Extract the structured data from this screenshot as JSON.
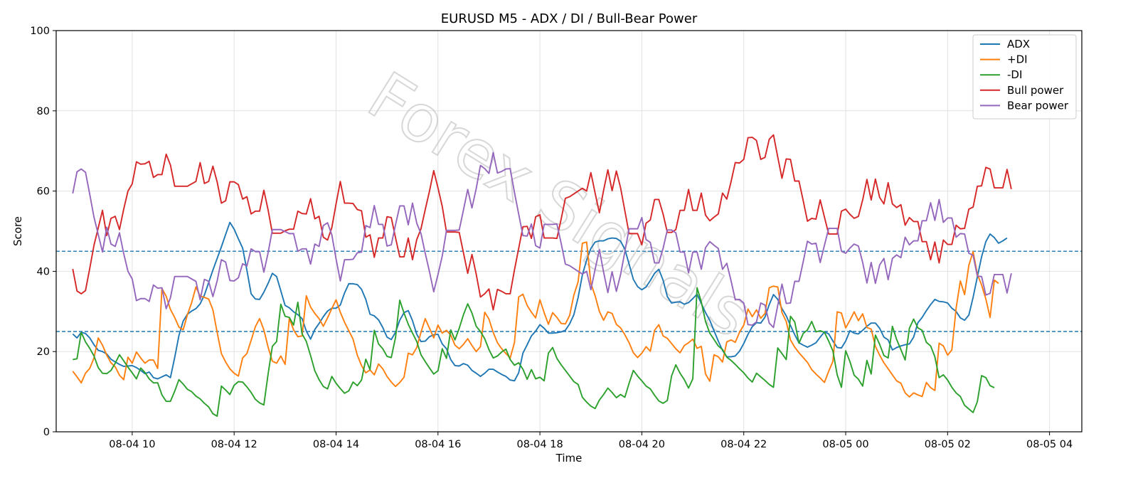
{
  "chart_data": {
    "type": "line",
    "title": "EURUSD M5 - ADX / DI / Bull-Bear Power",
    "xlabel": "Time",
    "ylabel": "Score",
    "ylim": [
      0,
      100
    ],
    "yticks": [
      0,
      20,
      40,
      60,
      80,
      100
    ],
    "x_start": "08-04 08:50",
    "x_step_minutes": 5,
    "xlim_hours": [
      -0.325,
      19.8
    ],
    "xticks": [
      {
        "hour": 1.1667,
        "label": "08-04 10"
      },
      {
        "hour": 3.1667,
        "label": "08-04 12"
      },
      {
        "hour": 5.1667,
        "label": "08-04 14"
      },
      {
        "hour": 7.1667,
        "label": "08-04 16"
      },
      {
        "hour": 9.1667,
        "label": "08-04 18"
      },
      {
        "hour": 11.1667,
        "label": "08-04 20"
      },
      {
        "hour": 13.1667,
        "label": "08-04 22"
      },
      {
        "hour": 15.1667,
        "label": "08-05 00"
      },
      {
        "hour": 17.1667,
        "label": "08-05 02"
      },
      {
        "hour": 19.1667,
        "label": "08-05 04"
      }
    ],
    "hlines": [
      {
        "y": 45,
        "style": "dashed",
        "color": "#1f77b4"
      },
      {
        "y": 25,
        "style": "dashed",
        "color": "#1f77b4"
      }
    ],
    "grid": true,
    "legend_position": "top-right",
    "watermark": "Forex Signals",
    "series": [
      {
        "name": "ADX",
        "color": "#1f77b4",
        "values": [
          24.4,
          23.4,
          24.8,
          24.5,
          23.4,
          21.7,
          20.3,
          20.0,
          19.4,
          18.1,
          17.4,
          16.8,
          16.3,
          16.4,
          16.5,
          16.0,
          15.3,
          14.5,
          14.9,
          13.5,
          13.2,
          13.7,
          14.2,
          13.5,
          18.5,
          24.0,
          27.6,
          29.3,
          30.1,
          30.7,
          31.9,
          34.1,
          37.2,
          40.3,
          43.2,
          46.1,
          49.2,
          52.2,
          50.5,
          48.1,
          45.8,
          40.3,
          34.4,
          33.1,
          33.0,
          34.8,
          37.0,
          39.5,
          38.7,
          35.1,
          31.5,
          30.9,
          29.9,
          29.2,
          28.2,
          25.1,
          23.1,
          25.5,
          27.0,
          28.7,
          30.1,
          30.8,
          30.8,
          31.6,
          34.6,
          36.9,
          36.9,
          36.7,
          35.5,
          33.0,
          29.3,
          28.9,
          27.9,
          26.0,
          23.6,
          23.0,
          24.8,
          27.8,
          29.7,
          30.2,
          27.7,
          24.3,
          22.5,
          22.6,
          23.7,
          24.2,
          24.3,
          21.9,
          20.7,
          18.0,
          16.5,
          16.4,
          17.0,
          16.6,
          15.3,
          14.6,
          13.8,
          14.6,
          15.6,
          15.6,
          14.9,
          14.3,
          13.8,
          12.9,
          12.7,
          14.7,
          19.6,
          21.7,
          23.9,
          25.1,
          26.7,
          25.8,
          24.6,
          24.6,
          24.7,
          24.9,
          25.3,
          26.9,
          29.2,
          33.5,
          39.1,
          42.8,
          45.7,
          47.3,
          47.6,
          47.6,
          48.1,
          48.3,
          48.2,
          47.5,
          45.5,
          41.8,
          38.0,
          36.2,
          35.4,
          36.1,
          37.7,
          39.5,
          40.5,
          37.8,
          33.7,
          32.1,
          32.3,
          32.4,
          31.8,
          32.2,
          33.2,
          34.3,
          32.0,
          29.7,
          27.8,
          25.2,
          22.6,
          20.3,
          18.7,
          18.7,
          18.9,
          20.1,
          22.0,
          24.3,
          26.2,
          27.2,
          27.1,
          28.6,
          31.7,
          34.2,
          33.0,
          30.7,
          28.9,
          26.5,
          24.2,
          22.2,
          21.6,
          21.1,
          21.6,
          22.2,
          23.6,
          24.9,
          24.4,
          22.6,
          21.0,
          20.9,
          22.6,
          25.2,
          24.6,
          24.4,
          25.3,
          26.3,
          27.1,
          27.1,
          25.8,
          23.6,
          22.9,
          20.4,
          21.0,
          21.4,
          21.7,
          21.9,
          23.6,
          27.2,
          28.5,
          30.2,
          31.7,
          33.0,
          32.5,
          32.4,
          32.1,
          30.8,
          30.0,
          28.4,
          27.8,
          29.1,
          33.5,
          38.6,
          43.6,
          47.4,
          49.3,
          48.4,
          47.0,
          47.6,
          48.3
        ]
      },
      {
        "name": "+DI",
        "color": "#ff7f0e",
        "values": [
          15.1,
          13.7,
          12.2,
          14.6,
          15.8,
          18.4,
          23.4,
          21.6,
          19.1,
          17.2,
          16.2,
          14.1,
          13.0,
          18.6,
          17.1,
          19.9,
          18.4,
          17.1,
          17.9,
          17.9,
          15.8,
          35.7,
          33.8,
          30.5,
          28.5,
          26.1,
          25.4,
          29.2,
          32.2,
          36.1,
          33.8,
          33.5,
          33.1,
          30.4,
          24.8,
          19.5,
          17.4,
          15.7,
          14.6,
          13.9,
          18.4,
          19.5,
          22.8,
          26.2,
          28.2,
          25.4,
          21.1,
          17.6,
          17.1,
          18.9,
          16.8,
          28.3,
          25.4,
          23.7,
          23.9,
          33.9,
          31.1,
          29.5,
          28.2,
          26.3,
          28.4,
          30.7,
          32.9,
          29.8,
          27.3,
          25.2,
          23.1,
          19.1,
          16.5,
          14.7,
          15.4,
          14.2,
          16.9,
          15.7,
          13.8,
          12.4,
          11.3,
          12.3,
          13.6,
          19.6,
          19.2,
          21.0,
          24.8,
          28.2,
          25.8,
          23.4,
          26.6,
          24.6,
          25.3,
          24.1,
          21.6,
          20.7,
          21.8,
          23.2,
          21.5,
          20.0,
          21.2,
          29.8,
          28.1,
          24.8,
          22.2,
          20.7,
          19.5,
          18.4,
          22.2,
          33.6,
          34.3,
          31.5,
          29.8,
          28.4,
          32.9,
          29.7,
          26.8,
          29.7,
          28.5,
          27.0,
          26.9,
          29.0,
          34.1,
          37.4,
          47.0,
          47.3,
          37.0,
          33.9,
          30.0,
          27.8,
          29.9,
          29.5,
          26.8,
          25.9,
          24.2,
          22.2,
          19.7,
          18.5,
          19.6,
          21.2,
          20.1,
          25.3,
          26.7,
          23.9,
          23.3,
          22.0,
          20.7,
          19.7,
          21.5,
          22.2,
          23.1,
          20.8,
          21.3,
          14.4,
          12.6,
          19.2,
          18.7,
          17.4,
          22.4,
          22.9,
          22.3,
          24.8,
          26.6,
          30.6,
          28.7,
          30.4,
          28.3,
          29.5,
          35.9,
          36.3,
          36.1,
          29.7,
          27.5,
          22.9,
          21.1,
          19.7,
          18.5,
          17.3,
          15.5,
          14.4,
          13.4,
          12.3,
          15.1,
          17.6,
          29.9,
          29.6,
          25.9,
          27.8,
          29.9,
          27.7,
          29.4,
          26.0,
          25.6,
          21.3,
          19.1,
          17.2,
          15.7,
          14.2,
          12.7,
          12.1,
          9.7,
          8.7,
          9.7,
          9.2,
          8.8,
          12.3,
          11.0,
          10.3,
          22.1,
          21.4,
          19.1,
          20.4,
          30.8,
          37.6,
          34.2,
          41.5,
          44.9,
          39.3,
          36.6,
          33.1,
          28.5,
          37.8,
          37.0
        ]
      },
      {
        "name": "-DI",
        "color": "#2ca02c",
        "values": [
          18.0,
          18.2,
          24.8,
          22.4,
          20.8,
          18.9,
          16.0,
          14.6,
          14.5,
          15.3,
          17.1,
          19.2,
          17.7,
          16.1,
          14.7,
          13.2,
          15.9,
          14.8,
          13.2,
          12.2,
          12.2,
          9.2,
          7.6,
          7.6,
          10.1,
          13.0,
          11.9,
          10.6,
          10.0,
          8.9,
          8.2,
          7.1,
          6.2,
          4.5,
          3.9,
          11.4,
          10.4,
          9.3,
          11.6,
          12.5,
          12.4,
          11.2,
          9.8,
          8.1,
          7.2,
          6.7,
          14.4,
          21.3,
          22.5,
          31.8,
          28.8,
          28.5,
          26.6,
          32.3,
          24.4,
          22.5,
          19.0,
          15.2,
          13.0,
          11.3,
          10.7,
          13.8,
          12.1,
          10.8,
          9.6,
          10.2,
          12.4,
          11.5,
          12.9,
          18.1,
          15.5,
          25.3,
          21.9,
          20.7,
          18.8,
          18.5,
          23.5,
          32.8,
          29.6,
          26.8,
          24.6,
          22.5,
          19.2,
          17.5,
          15.9,
          14.4,
          15.2,
          20.7,
          18.3,
          25.4,
          22.9,
          25.8,
          29.2,
          31.9,
          29.6,
          26.3,
          25.0,
          23.2,
          20.5,
          18.4,
          18.9,
          19.9,
          20.6,
          18.0,
          16.6,
          17.2,
          15.6,
          13.1,
          15.5,
          13.2,
          13.6,
          12.7,
          19.6,
          21.0,
          18.3,
          16.7,
          15.3,
          13.9,
          12.5,
          11.8,
          8.6,
          7.4,
          6.4,
          5.8,
          7.9,
          9.3,
          10.9,
          9.8,
          8.5,
          9.3,
          8.6,
          12.1,
          15.3,
          13.9,
          12.7,
          11.4,
          10.7,
          9.1,
          7.7,
          7.1,
          7.8,
          13.9,
          16.7,
          14.6,
          13.0,
          10.9,
          13.2,
          35.9,
          32.4,
          27.5,
          24.6,
          23.0,
          21.4,
          20.5,
          18.6,
          17.8,
          16.8,
          15.7,
          14.7,
          13.4,
          12.4,
          14.6,
          13.7,
          12.8,
          11.8,
          11.1,
          20.9,
          19.5,
          18.0,
          28.8,
          27.4,
          22.1,
          24.5,
          25.4,
          27.5,
          24.9,
          25.2,
          24.8,
          22.6,
          20.1,
          14.2,
          11.1,
          20.2,
          17.5,
          14.1,
          13.1,
          11.4,
          17.8,
          14.4,
          24.1,
          21.8,
          19.0,
          18.4,
          26.3,
          23.0,
          20.5,
          17.9,
          25.8,
          28.1,
          25.9,
          25.3,
          22.3,
          21.4,
          18.7,
          13.5,
          14.2,
          12.9,
          11.1,
          9.7,
          8.8,
          6.6,
          5.7,
          4.8,
          7.5,
          14.0,
          13.5,
          11.5,
          11.0
        ]
      },
      {
        "name": "Bull power",
        "color": "#d62728",
        "values": [
          40.6,
          35.1,
          34.4,
          35.2,
          40.7,
          46.5,
          50.8,
          55.2,
          48.9,
          53.2,
          53.7,
          50.4,
          55.5,
          60.0,
          61.8,
          67.3,
          66.7,
          66.8,
          67.4,
          63.4,
          64.1,
          64.1,
          69.2,
          66.5,
          61.2,
          61.2,
          61.2,
          61.2,
          61.8,
          62.4,
          67.1,
          61.9,
          62.4,
          66.2,
          62.3,
          57.0,
          57.6,
          62.3,
          62.3,
          61.6,
          58.0,
          58.6,
          54.3,
          55.0,
          55.0,
          60.2,
          55.3,
          49.5,
          49.5,
          49.5,
          50.1,
          50.5,
          50.5,
          55.0,
          54.4,
          54.3,
          58.1,
          53.1,
          53.7,
          48.5,
          47.8,
          50.9,
          56.8,
          62.4,
          57.0,
          57.0,
          56.9,
          55.4,
          55.1,
          48.5,
          49.1,
          43.5,
          48.3,
          48.3,
          53.6,
          53.4,
          48.4,
          43.6,
          43.6,
          48.3,
          42.9,
          47.9,
          50.6,
          55.4,
          60.0,
          65.1,
          60.8,
          56.2,
          49.8,
          49.8,
          49.8,
          49.7,
          44.6,
          39.5,
          44.2,
          39.3,
          33.6,
          34.4,
          35.6,
          30.4,
          35.5,
          35.0,
          34.4,
          34.4,
          40.3,
          45.7,
          51.1,
          51.2,
          48.2,
          53.6,
          54.1,
          48.3,
          48.3,
          48.3,
          48.2,
          53.0,
          58.2,
          58.6,
          59.3,
          60.0,
          60.7,
          60.0,
          64.6,
          59.5,
          54.6,
          60.2,
          65.3,
          60.1,
          65.0,
          60.8,
          55.1,
          49.4,
          49.4,
          49.4,
          46.6,
          52.0,
          52.8,
          57.9,
          57.9,
          54.3,
          49.7,
          49.7,
          50.4,
          55.2,
          55.2,
          60.4,
          55.2,
          55.2,
          59.5,
          54.0,
          52.6,
          53.5,
          54.3,
          59.5,
          58.0,
          62.3,
          67.1,
          67.0,
          67.9,
          73.3,
          73.4,
          72.6,
          67.9,
          68.4,
          72.9,
          74.0,
          68.5,
          63.2,
          68.0,
          67.9,
          62.5,
          62.5,
          57.6,
          52.5,
          53.2,
          53.0,
          57.8,
          53.5,
          49.3,
          49.3,
          49.3,
          55.0,
          55.5,
          54.2,
          53.2,
          53.7,
          57.8,
          62.9,
          57.8,
          63.0,
          58.4,
          56.8,
          62.1,
          56.8,
          55.9,
          56.6,
          51.5,
          53.4,
          52.4,
          52.4,
          47.4,
          47.4,
          42.9,
          47.3,
          42.1,
          47.8,
          46.7,
          46.7,
          51.5,
          50.6,
          50.7,
          55.5,
          56.0,
          61.2,
          61.3,
          65.9,
          65.5,
          60.8,
          60.8,
          60.8,
          65.4,
          60.5
        ]
      },
      {
        "name": "Bear power",
        "color": "#9467bd",
        "values": [
          59.4,
          64.8,
          65.5,
          64.7,
          59.2,
          53.5,
          49.2,
          44.8,
          51.0,
          46.8,
          46.2,
          49.6,
          44.4,
          40.0,
          38.1,
          32.7,
          33.2,
          33.2,
          32.5,
          36.6,
          35.8,
          35.9,
          30.7,
          33.4,
          38.7,
          38.7,
          38.7,
          38.7,
          38.1,
          37.5,
          32.9,
          38.0,
          37.5,
          33.7,
          37.6,
          42.9,
          42.3,
          37.7,
          37.6,
          38.4,
          41.9,
          41.3,
          45.6,
          44.9,
          44.9,
          39.8,
          44.6,
          50.4,
          50.4,
          50.4,
          49.9,
          49.4,
          49.4,
          45.0,
          45.6,
          45.6,
          41.8,
          46.8,
          46.2,
          51.4,
          52.1,
          49.1,
          43.1,
          37.6,
          42.9,
          42.9,
          43.0,
          44.6,
          44.8,
          51.4,
          50.9,
          56.4,
          51.7,
          51.7,
          46.3,
          46.6,
          51.6,
          56.3,
          56.3,
          51.6,
          57.0,
          52.0,
          49.4,
          44.5,
          39.9,
          34.9,
          39.2,
          43.8,
          50.2,
          50.2,
          50.2,
          50.3,
          55.3,
          60.4,
          55.8,
          60.6,
          66.4,
          65.6,
          64.4,
          69.6,
          64.5,
          64.9,
          65.5,
          65.6,
          59.7,
          54.3,
          48.9,
          48.8,
          51.8,
          46.4,
          45.8,
          51.7,
          51.7,
          51.7,
          51.8,
          47.0,
          41.8,
          41.4,
          40.7,
          40.0,
          39.3,
          40.0,
          35.4,
          40.5,
          45.4,
          39.8,
          34.7,
          39.9,
          35.0,
          39.2,
          44.9,
          50.6,
          50.6,
          50.6,
          53.4,
          47.9,
          47.2,
          42.1,
          42.1,
          45.7,
          50.3,
          50.3,
          49.6,
          44.8,
          44.8,
          39.6,
          44.8,
          44.8,
          40.5,
          45.9,
          47.4,
          46.5,
          45.7,
          40.5,
          42.0,
          37.7,
          32.9,
          33.0,
          32.1,
          26.7,
          26.6,
          27.4,
          32.1,
          31.6,
          27.1,
          26.0,
          31.5,
          36.8,
          32.0,
          32.1,
          37.5,
          37.5,
          42.4,
          47.5,
          46.8,
          47.0,
          42.2,
          46.5,
          50.7,
          50.7,
          50.7,
          45.0,
          44.5,
          45.8,
          46.8,
          46.3,
          42.2,
          37.1,
          42.2,
          37.0,
          41.6,
          43.2,
          37.9,
          43.2,
          44.1,
          43.4,
          48.5,
          46.6,
          47.6,
          47.6,
          52.6,
          52.6,
          57.1,
          52.7,
          57.9,
          52.2,
          53.3,
          53.3,
          48.5,
          49.4,
          49.3,
          44.5,
          44.0,
          38.8,
          38.7,
          34.1,
          34.5,
          39.2,
          39.2,
          39.2,
          34.6,
          39.5
        ]
      }
    ]
  }
}
